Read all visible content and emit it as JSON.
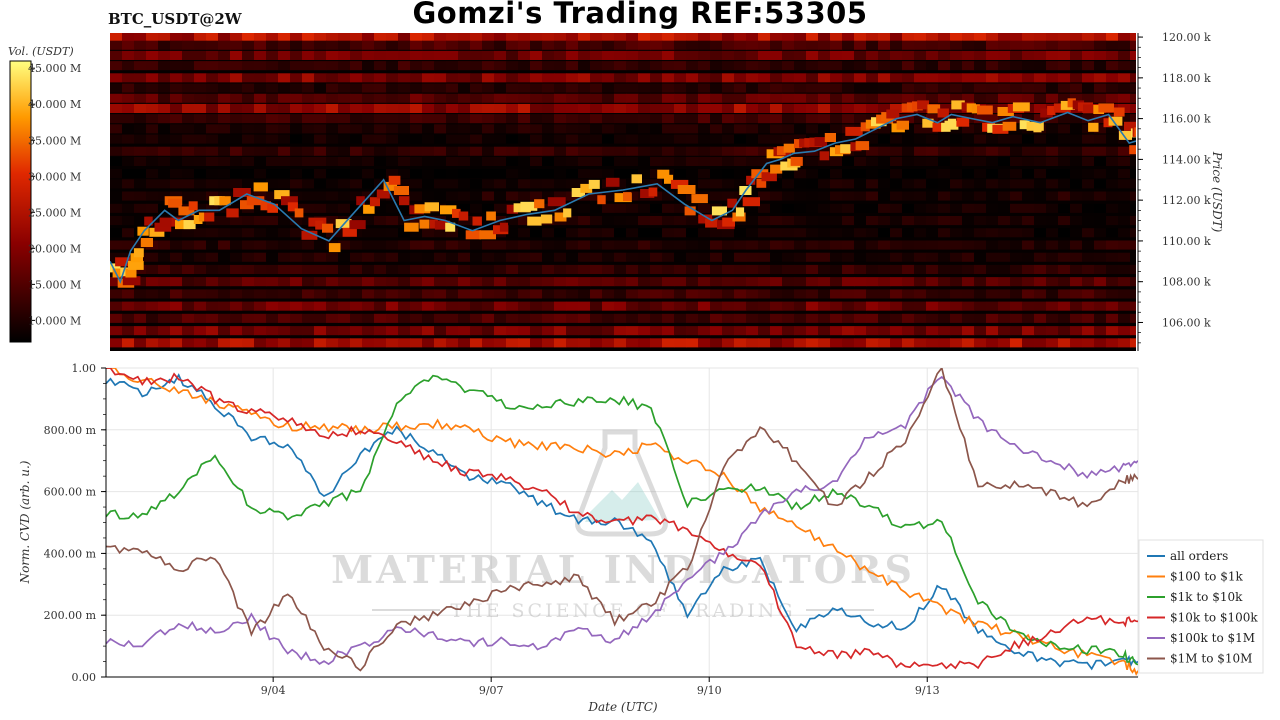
{
  "header": {
    "title": "Gomzi's Trading REF:53305",
    "pair_label": "BTC_USDT@2W"
  },
  "watermark": {
    "line1": "MATERIAL INDICATORS",
    "line2": "THE SCIENCE OF TRADING"
  },
  "colors": {
    "price_line": "#2a7ab0",
    "heat_low": "#000000",
    "heat_mid": "#d62000",
    "heat_high": "#ffff66"
  },
  "chart_data": [
    {
      "type": "heatmap",
      "title": "",
      "colorbar_label": "Vol. (USDT)",
      "colorbar_ticks": [
        "10.000 M",
        "15.000 M",
        "20.000 M",
        "25.000 M",
        "30.000 M",
        "35.000 M",
        "40.000 M",
        "45.000 M"
      ],
      "colorbar_range": [
        7,
        46
      ],
      "ylabel": "Price (USDT)",
      "y_ticks": [
        "106.00 k",
        "108.00 k",
        "110.00 k",
        "112.00 k",
        "114.00 k",
        "116.00 k",
        "118.00 k",
        "120.00 k"
      ],
      "y_tick_values": [
        106,
        108,
        110,
        112,
        114,
        116,
        118,
        120
      ],
      "ylim": [
        104.6,
        120.2
      ],
      "xlim": [
        0,
        15
      ],
      "price_series": {
        "name": "",
        "x": [
          0,
          0.15,
          0.3,
          0.5,
          0.8,
          1.0,
          1.3,
          1.6,
          2.0,
          2.4,
          2.8,
          3.2,
          3.6,
          4.0,
          4.3,
          4.6,
          4.9,
          5.3,
          5.7,
          6.1,
          6.5,
          7.0,
          7.5,
          8.0,
          8.4,
          8.8,
          9.1,
          9.3,
          9.6,
          9.8,
          10.0,
          10.3,
          10.6,
          10.9,
          11.2,
          11.5,
          11.8,
          12.1,
          12.3,
          12.6,
          12.9,
          13.2,
          13.6,
          14.0,
          14.3,
          14.6,
          14.9,
          15.0
        ],
        "y": [
          109.0,
          108.0,
          109.5,
          110.5,
          111.5,
          111.0,
          111.5,
          111.5,
          112.3,
          111.8,
          110.6,
          110.0,
          111.5,
          113.0,
          111.0,
          111.2,
          111.0,
          110.5,
          111.0,
          111.3,
          111.5,
          112.3,
          112.5,
          112.8,
          111.8,
          111.0,
          111.5,
          112.5,
          113.8,
          114.0,
          114.3,
          114.4,
          114.8,
          115.0,
          115.5,
          116.0,
          116.2,
          115.8,
          116.2,
          116.0,
          115.8,
          116.1,
          115.8,
          116.3,
          115.9,
          116.2,
          114.8,
          114.9
        ]
      },
      "heat_bands": [
        {
          "price": 120.0,
          "value": 25
        },
        {
          "price": 119.6,
          "value": 14
        },
        {
          "price": 119.1,
          "value": 18
        },
        {
          "price": 118.6,
          "value": 12
        },
        {
          "price": 118.0,
          "value": 20
        },
        {
          "price": 117.5,
          "value": 11
        },
        {
          "price": 117.0,
          "value": 16
        },
        {
          "price": 116.5,
          "value": 22
        },
        {
          "price": 116.0,
          "value": 13
        },
        {
          "price": 115.5,
          "value": 10
        },
        {
          "price": 115.0,
          "value": 9
        },
        {
          "price": 114.4,
          "value": 12
        },
        {
          "price": 113.9,
          "value": 9
        },
        {
          "price": 113.3,
          "value": 8
        },
        {
          "price": 112.8,
          "value": 9
        },
        {
          "price": 112.2,
          "value": 10
        },
        {
          "price": 111.6,
          "value": 9
        },
        {
          "price": 111.0,
          "value": 10
        },
        {
          "price": 110.4,
          "value": 9
        },
        {
          "price": 109.8,
          "value": 11
        },
        {
          "price": 109.2,
          "value": 10
        },
        {
          "price": 108.6,
          "value": 12
        },
        {
          "price": 108.0,
          "value": 16
        },
        {
          "price": 107.4,
          "value": 13
        },
        {
          "price": 106.8,
          "value": 18
        },
        {
          "price": 106.2,
          "value": 14
        },
        {
          "price": 105.6,
          "value": 19
        },
        {
          "price": 105.0,
          "value": 24
        }
      ]
    },
    {
      "type": "line",
      "title": "",
      "xlabel": "Date (UTC)",
      "ylabel": "Norm. CVD (arb. u.)",
      "x_ticks": [
        "9/04",
        "9/07",
        "9/10",
        "9/13"
      ],
      "x_tick_positions": [
        2.3,
        5.3,
        8.3,
        11.3
      ],
      "xlim": [
        0,
        14.2
      ],
      "ylim": [
        0,
        1
      ],
      "y_ticks": [
        "0.00",
        "200.00 m",
        "400.00 m",
        "600.00 m",
        "800.00 m",
        "1.00"
      ],
      "y_tick_values": [
        0,
        0.2,
        0.4,
        0.6,
        0.8,
        1.0
      ],
      "legend_position": "bottom-right",
      "x": [
        0,
        0.5,
        1.0,
        1.5,
        2.0,
        2.5,
        3.0,
        3.5,
        4.0,
        4.5,
        5.0,
        5.5,
        6.0,
        6.5,
        7.0,
        7.5,
        8.0,
        8.5,
        9.0,
        9.5,
        10.0,
        10.5,
        11.0,
        11.5,
        12.0,
        12.5,
        13.0,
        13.5,
        14.0,
        14.2
      ],
      "series": [
        {
          "name": "all orders",
          "color": "#1f77b4",
          "values": [
            0.96,
            0.92,
            0.97,
            0.88,
            0.78,
            0.75,
            0.58,
            0.72,
            0.8,
            0.73,
            0.65,
            0.63,
            0.56,
            0.51,
            0.5,
            0.45,
            0.2,
            0.35,
            0.38,
            0.15,
            0.22,
            0.18,
            0.16,
            0.3,
            0.15,
            0.08,
            0.05,
            0.04,
            0.05,
            0.05
          ]
        },
        {
          "name": "$100 to $1k",
          "color": "#ff7f0e",
          "values": [
            1.0,
            0.96,
            0.93,
            0.89,
            0.85,
            0.81,
            0.81,
            0.8,
            0.81,
            0.82,
            0.8,
            0.76,
            0.75,
            0.74,
            0.72,
            0.75,
            0.7,
            0.65,
            0.55,
            0.49,
            0.42,
            0.34,
            0.28,
            0.22,
            0.17,
            0.14,
            0.1,
            0.07,
            0.04,
            0.02
          ]
        },
        {
          "name": "$1k to $10k",
          "color": "#2ca02c",
          "values": [
            0.53,
            0.52,
            0.6,
            0.72,
            0.55,
            0.52,
            0.56,
            0.6,
            0.88,
            0.98,
            0.93,
            0.88,
            0.88,
            0.89,
            0.9,
            0.87,
            0.56,
            0.6,
            0.62,
            0.55,
            0.6,
            0.55,
            0.48,
            0.5,
            0.25,
            0.15,
            0.1,
            0.09,
            0.07,
            0.04
          ]
        },
        {
          "name": "$10k to $100k",
          "color": "#d62728",
          "values": [
            1.0,
            0.96,
            0.97,
            0.9,
            0.86,
            0.84,
            0.78,
            0.8,
            0.76,
            0.7,
            0.66,
            0.64,
            0.6,
            0.53,
            0.5,
            0.51,
            0.48,
            0.4,
            0.37,
            0.1,
            0.07,
            0.08,
            0.03,
            0.04,
            0.04,
            0.1,
            0.14,
            0.19,
            0.18,
            0.18
          ]
        },
        {
          "name": "$100k to $1M",
          "color": "#9467bd",
          "values": [
            0.12,
            0.1,
            0.18,
            0.14,
            0.19,
            0.08,
            0.05,
            0.1,
            0.15,
            0.14,
            0.11,
            0.12,
            0.1,
            0.15,
            0.12,
            0.2,
            0.32,
            0.4,
            0.52,
            0.6,
            0.63,
            0.78,
            0.82,
            0.98,
            0.83,
            0.74,
            0.7,
            0.65,
            0.68,
            0.7
          ]
        },
        {
          "name": "$1M to $10M",
          "color": "#8c564b",
          "values": [
            0.42,
            0.4,
            0.35,
            0.39,
            0.14,
            0.27,
            0.1,
            0.03,
            0.17,
            0.2,
            0.24,
            0.28,
            0.3,
            0.32,
            0.18,
            0.24,
            0.35,
            0.68,
            0.81,
            0.7,
            0.55,
            0.65,
            0.77,
            1.0,
            0.62,
            0.62,
            0.6,
            0.55,
            0.64,
            0.64
          ]
        }
      ]
    }
  ]
}
